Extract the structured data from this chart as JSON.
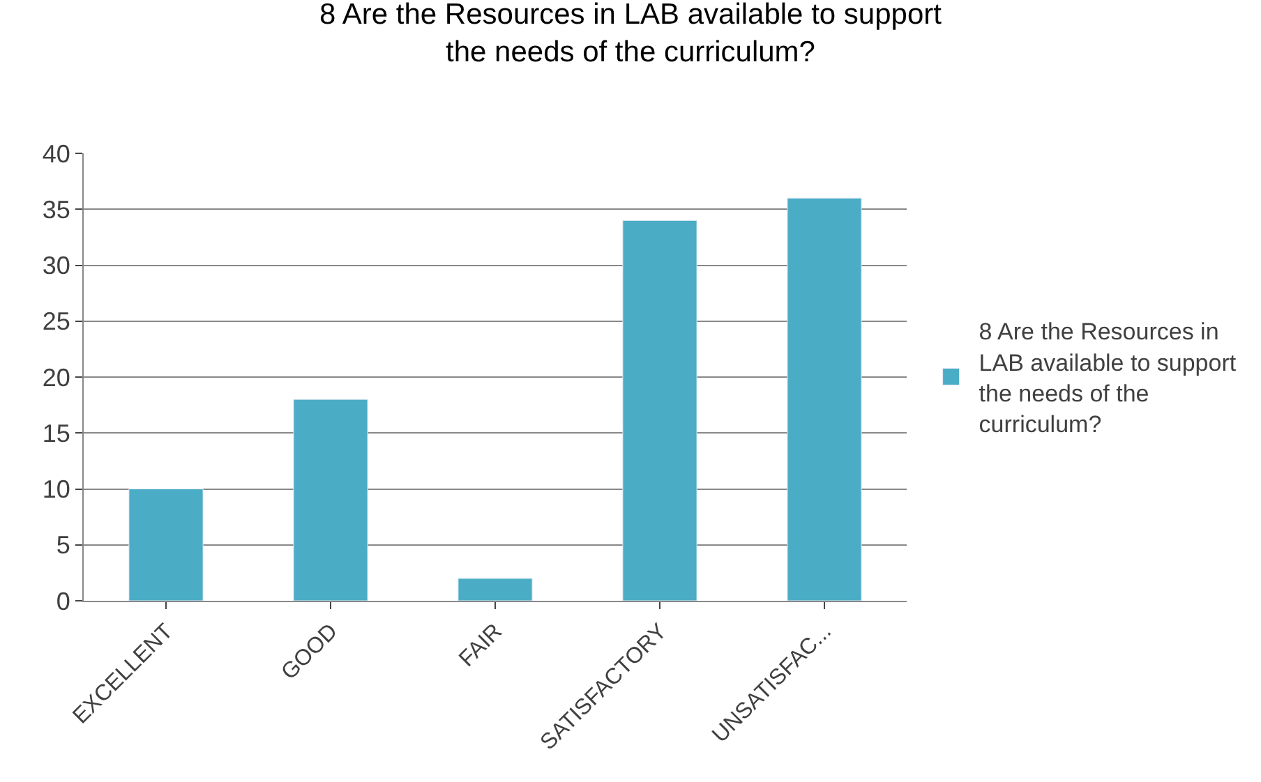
{
  "chart_data": {
    "type": "bar",
    "title": "8 Are the Resources in LAB available to support the needs of the curriculum?",
    "categories": [
      "EXCELLENT",
      "GOOD",
      "FAIR",
      "SATISFACTORY",
      "UNSATISFAC..."
    ],
    "series": [
      {
        "name": "8 Are the Resources in LAB available to support the needs of the curriculum?",
        "color": "#4bacc6",
        "values": [
          10,
          18,
          2,
          34,
          36
        ]
      }
    ],
    "ylim": [
      0,
      40
    ],
    "yticks": [
      0,
      5,
      10,
      15,
      20,
      25,
      30,
      35,
      40
    ],
    "grid": "y",
    "legend": "right"
  }
}
